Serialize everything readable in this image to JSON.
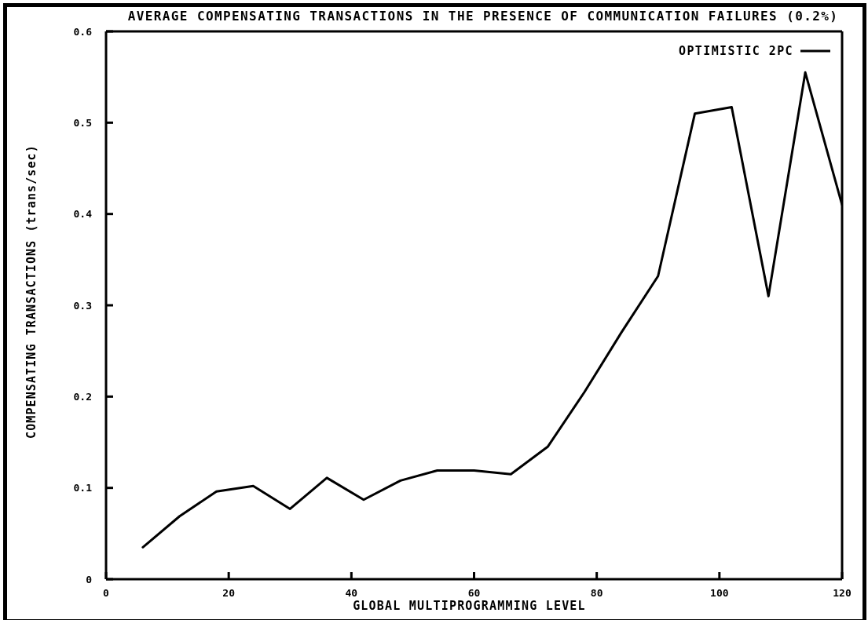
{
  "chart_data": {
    "type": "line",
    "title": "AVERAGE COMPENSATING TRANSACTIONS IN THE PRESENCE OF COMMUNICATION FAILURES (0.2%)",
    "xlabel": "GLOBAL MULTIPROGRAMMING LEVEL",
    "ylabel": "COMPENSATING TRANSACTIONS (trans/sec)",
    "x": [
      6,
      12,
      18,
      24,
      30,
      36,
      42,
      48,
      54,
      60,
      66,
      72,
      78,
      84,
      90,
      96,
      102,
      108,
      114,
      120
    ],
    "series": [
      {
        "name": "OPTIMISTIC 2PC",
        "color": "#000000",
        "values": [
          0.035,
          0.069,
          0.096,
          0.102,
          0.077,
          0.111,
          0.087,
          0.108,
          0.119,
          0.119,
          0.115,
          0.145,
          0.205,
          0.27,
          0.332,
          0.51,
          0.517,
          0.31,
          0.555,
          0.41
        ]
      }
    ],
    "xlim": [
      0,
      120
    ],
    "xticks": [
      0,
      20,
      40,
      60,
      80,
      100,
      120
    ],
    "ylim": [
      0,
      0.6
    ],
    "yticks": [
      0,
      0.1,
      0.2,
      0.3,
      0.4,
      0.5,
      0.6
    ],
    "legend": "top right",
    "marker": "none",
    "line_style": "solid"
  }
}
